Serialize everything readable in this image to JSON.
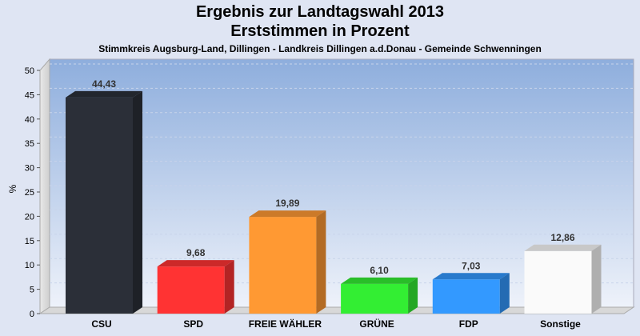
{
  "chart_data": {
    "type": "bar",
    "title": "Ergebnis zur Landtagswahl 2013",
    "subtitle": "Erststimmen in Prozent",
    "caption": "Stimmkreis Augsburg-Land, Dillingen - Landkreis Dillingen a.d.Donau - Gemeinde Schwenningen",
    "xlabel": "",
    "ylabel": "%",
    "ylim": [
      0,
      50
    ],
    "yticks": [
      0,
      5,
      10,
      15,
      20,
      25,
      30,
      35,
      40,
      45,
      50
    ],
    "grid": true,
    "categories": [
      "CSU",
      "SPD",
      "FREIE WÄHLER",
      "GRÜNE",
      "FDP",
      "Sonstige"
    ],
    "values": [
      44.43,
      9.68,
      19.89,
      6.1,
      7.03,
      12.86
    ],
    "value_labels": [
      "44,43",
      "9,68",
      "19,89",
      "6,10",
      "7,03",
      "12,86"
    ],
    "colors": [
      "#2b2f38",
      "#ff3333",
      "#ff9933",
      "#33ee33",
      "#3399ff",
      "#fafafa"
    ]
  }
}
